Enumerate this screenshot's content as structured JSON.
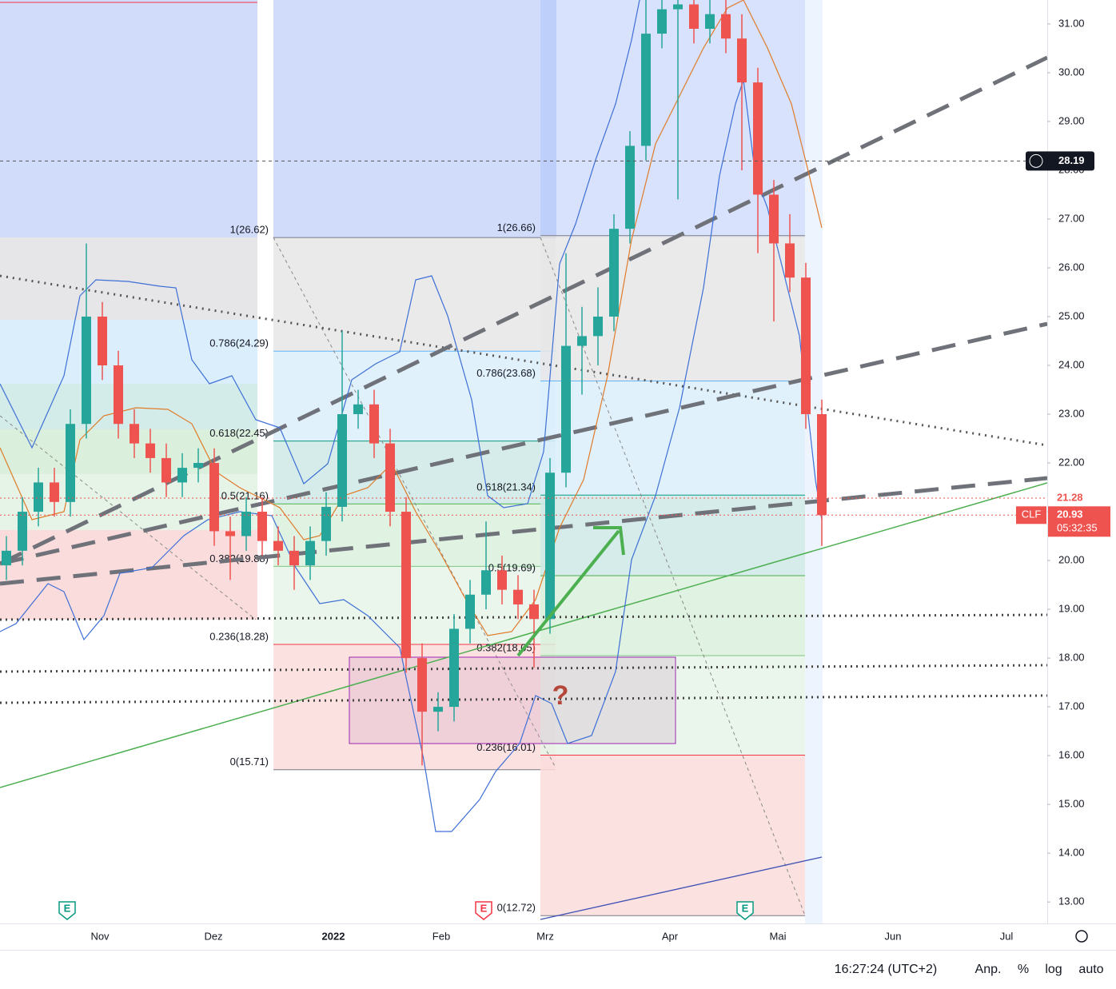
{
  "chart_data": {
    "type": "candlestick",
    "symbol": "CLF",
    "up_color": "#26a69a",
    "down_color": "#ef5350",
    "open": [
      19.9,
      20.2,
      21.0,
      21.6,
      21.2,
      22.8,
      25.0,
      24.0,
      22.8,
      22.4,
      22.1,
      21.6,
      21.9,
      22.0,
      20.6,
      20.5,
      21.0,
      20.4,
      20.2,
      19.9,
      20.4,
      21.1,
      23.0,
      23.2,
      22.4,
      21.0,
      18.0,
      16.9,
      17.0,
      18.6,
      19.3,
      19.8,
      19.4,
      19.1,
      18.8,
      21.8,
      24.4,
      24.6,
      25.0,
      26.8,
      28.5,
      30.8,
      31.3,
      31.4,
      30.9,
      31.2,
      30.7,
      29.8,
      27.5,
      26.5,
      25.8,
      23.0
    ],
    "high": [
      20.5,
      21.3,
      21.9,
      21.9,
      23.1,
      26.5,
      25.3,
      24.3,
      23.1,
      22.7,
      22.4,
      22.2,
      22.3,
      22.3,
      20.9,
      21.3,
      21.3,
      20.7,
      20.5,
      20.7,
      21.4,
      24.7,
      23.5,
      23.5,
      22.7,
      21.3,
      18.3,
      17.3,
      18.9,
      19.6,
      20.8,
      20.1,
      19.7,
      19.4,
      22.1,
      26.3,
      25.2,
      25.6,
      27.1,
      28.8,
      31.5,
      31.5,
      31.5,
      31.5,
      31.5,
      31.5,
      31.2,
      30.1,
      27.8,
      27.1,
      26.1,
      23.3
    ],
    "low": [
      19.6,
      19.9,
      20.7,
      20.9,
      20.9,
      22.5,
      23.7,
      22.5,
      22.1,
      21.8,
      21.3,
      21.3,
      21.6,
      20.3,
      19.6,
      20.2,
      20.1,
      19.9,
      19.4,
      19.6,
      20.1,
      20.8,
      22.7,
      22.1,
      20.7,
      17.7,
      15.8,
      16.5,
      16.7,
      18.3,
      19.0,
      19.1,
      18.8,
      17.8,
      18.5,
      21.5,
      23.4,
      24.0,
      24.7,
      26.5,
      28.2,
      30.5,
      27.4,
      30.6,
      30.6,
      30.4,
      28.0,
      26.3,
      24.9,
      25.5,
      22.7,
      20.3
    ],
    "close": [
      20.2,
      21.0,
      21.6,
      21.2,
      22.8,
      25.0,
      24.0,
      22.8,
      22.4,
      22.1,
      21.6,
      21.9,
      22.0,
      20.6,
      20.5,
      21.0,
      20.4,
      20.2,
      19.9,
      20.4,
      21.1,
      23.0,
      23.2,
      22.4,
      21.0,
      18.0,
      16.9,
      17.0,
      18.6,
      19.3,
      19.8,
      19.4,
      19.1,
      18.8,
      21.8,
      24.4,
      24.6,
      25.0,
      26.8,
      28.5,
      30.8,
      31.3,
      31.4,
      30.9,
      31.2,
      30.7,
      29.8,
      27.5,
      26.5,
      25.8,
      23.0,
      20.93
    ],
    "ylim": [
      12.56,
      31.49
    ],
    "yticks": [
      {
        "value": 13,
        "label": "13.00"
      },
      {
        "value": 14,
        "label": "14.00"
      },
      {
        "value": 15,
        "label": "15.00"
      },
      {
        "value": 16,
        "label": "16.00"
      },
      {
        "value": 17,
        "label": "17.00"
      },
      {
        "value": 18,
        "label": "18.00"
      },
      {
        "value": 19,
        "label": "19.00"
      },
      {
        "value": 20,
        "label": "20.00"
      },
      {
        "value": 21,
        "label": "21.00"
      },
      {
        "value": 22,
        "label": "22.00"
      },
      {
        "value": 23,
        "label": "23.00"
      },
      {
        "value": 24,
        "label": "24.00"
      },
      {
        "value": 25,
        "label": "25.00"
      },
      {
        "value": 26,
        "label": "26.00"
      },
      {
        "value": 27,
        "label": "27.00"
      },
      {
        "value": 28,
        "label": "28.00"
      },
      {
        "value": 29,
        "label": "29.00"
      },
      {
        "value": 30,
        "label": "30.00"
      },
      {
        "value": 31,
        "label": "31.00"
      }
    ],
    "x_labels": [
      "Nov",
      "Dez",
      "2022",
      "Feb",
      "Mrz",
      "Apr",
      "Mai",
      "Jun",
      "Jul"
    ],
    "fibonacci": [
      [
        {
          "value": 26.62,
          "label": "1(26.62)"
        },
        {
          "value": 24.29,
          "label": "0.786(24.29)"
        },
        {
          "value": 22.45,
          "label": "0.618(22.45)"
        },
        {
          "value": 21.16,
          "label": "0.5(21.16)"
        },
        {
          "value": 19.88,
          "label": "0.382(19.88)"
        },
        {
          "value": 18.28,
          "label": "0.236(18.28)"
        },
        {
          "value": 15.71,
          "label": "0(15.71)"
        }
      ],
      [
        {
          "value": 26.66,
          "label": "1(26.66)"
        },
        {
          "value": 23.68,
          "label": "0.786(23.68)"
        },
        {
          "value": 21.34,
          "label": "0.618(21.34)"
        },
        {
          "value": 19.69,
          "label": "0.5(19.69)"
        },
        {
          "value": 18.05,
          "label": "0.382(18.05)"
        },
        {
          "value": 16.01,
          "label": "0.236(16.01)"
        },
        {
          "value": 12.72,
          "label": "0(12.72)"
        }
      ]
    ],
    "price_markers": [
      {
        "value": 28.19,
        "label": "28.19"
      },
      {
        "value": 21.28,
        "label": "21.28"
      },
      {
        "value": 20.93,
        "label": "20.93"
      }
    ],
    "countdown": "05:32:35",
    "annotation": "?",
    "earnings": [
      "E",
      "E",
      "E"
    ]
  },
  "toolbar": {
    "time": "16:27:24 (UTC+2)",
    "buttons": [
      "Anp.",
      "%",
      "log",
      "auto"
    ]
  }
}
